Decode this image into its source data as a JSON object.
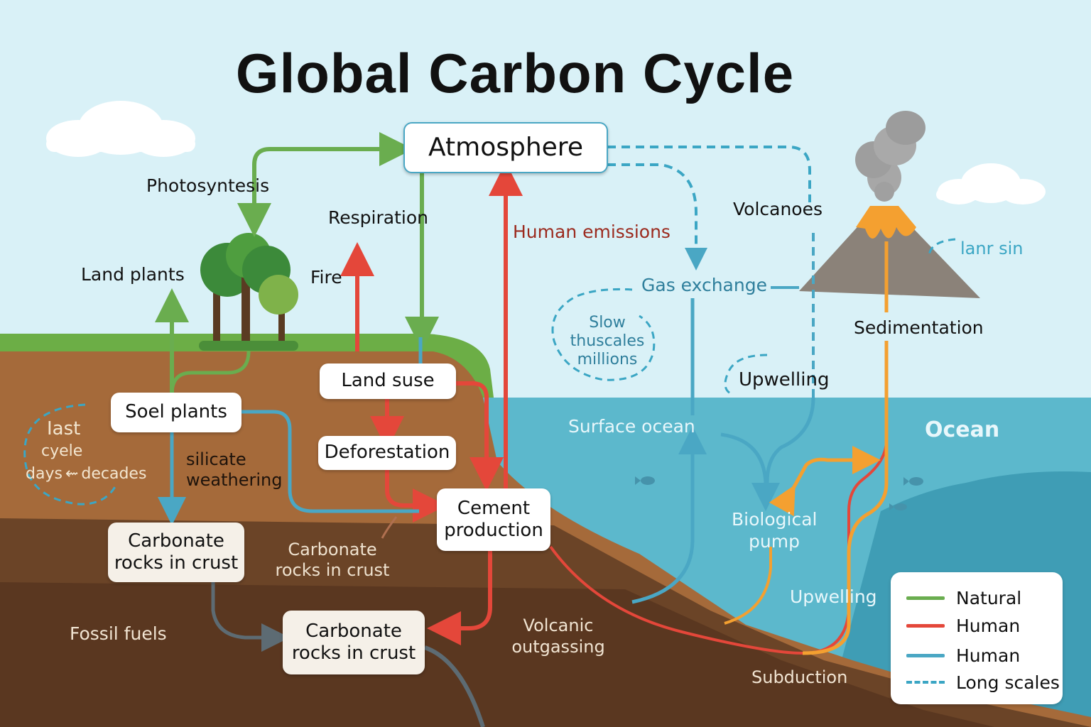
{
  "title": "Global Carbon Cycle",
  "colors": {
    "natural": "#6aad4f",
    "human": "#e4473a",
    "ocean_flow": "#4aa7c4",
    "long_scales": "#3ba6c4",
    "orange_flow": "#f4a030",
    "sky": "#d9f1f7",
    "ocean": "#5cb8cc"
  },
  "boxes": {
    "atmosphere": "Atmosphere",
    "soel_plants": "Soel plants",
    "land_suse": "Land suse",
    "deforestation": "Deforestation",
    "cement_line1": "Cement",
    "cement_line2": "production",
    "carbonate_left_line1": "Carbonate",
    "carbonate_left_line2": "rocks in crust",
    "carbonate_bottom_line1": "Carbonate",
    "carbonate_bottom_line2": "rocks in crust"
  },
  "labels": {
    "photosynthesis": "Photosyntesis",
    "respiration": "Respiration",
    "land_plants": "Land plants",
    "fire": "Fire",
    "human_emissions": "Human emissions",
    "volcanoes": "Volcanoes",
    "gas_exchange": "Gas exchange",
    "lanr_sin": "lanr sin",
    "sedimentation": "Sedimentation",
    "slow_line1": "Slow",
    "slow_line2": "thuscales",
    "slow_line3": "millions",
    "upwelling_top": "Upwelling",
    "surface_ocean": "Surface ocean",
    "ocean": "Ocean",
    "fast_line1": "Iast",
    "fast_line2": "cyele",
    "fast_line3": "days",
    "fast_line3b": "decades",
    "silicate_line1": "silicate",
    "silicate_line2": "weathering",
    "carbonate_mid_line1": "Carbonate",
    "carbonate_mid_line2": "rocks in crust",
    "biological_line1": "Biological",
    "biological_line2": "pump",
    "upwelling_bottom": "Upwelling",
    "fossil_fuels": "Fossil fuels",
    "volcanic_line1": "Volcanic",
    "volcanic_line2": "outgassing",
    "subduction": "Subduction"
  },
  "legend": [
    {
      "label": "Natural",
      "color": "#6aad4f",
      "style": "solid"
    },
    {
      "label": "Human",
      "color": "#e4473a",
      "style": "solid"
    },
    {
      "label": "Human",
      "color": "#4aa7c4",
      "style": "solid"
    },
    {
      "label": "Long scales",
      "color": "#3ba6c4",
      "style": "dashed"
    }
  ]
}
